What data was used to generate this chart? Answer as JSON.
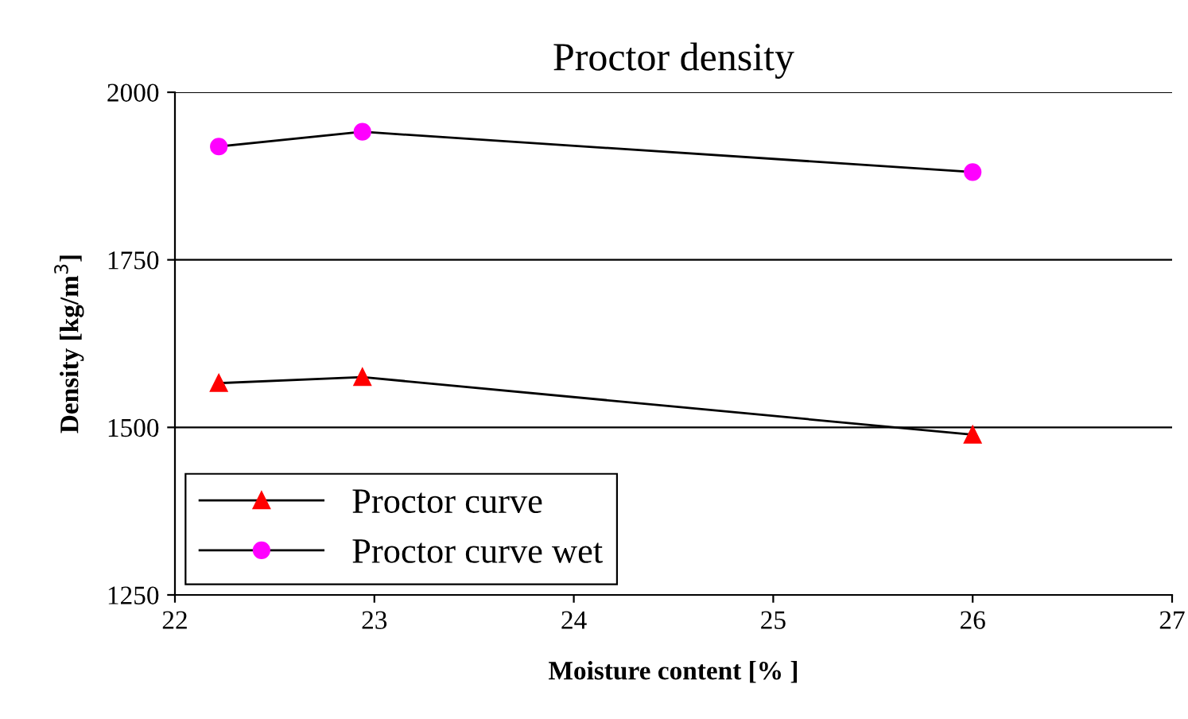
{
  "chart_data": {
    "type": "line",
    "title": "Proctor density",
    "xlabel": "Moisture content [% ]",
    "ylabel": "Density [kg/m$^{3}$]",
    "xlim": [
      22,
      27
    ],
    "xticks": [
      22,
      23,
      24,
      25,
      26,
      27
    ],
    "ylim": [
      1250,
      2000
    ],
    "yticks": [
      1250,
      1500,
      1750,
      2000
    ],
    "grid": "y",
    "legend": "bottom left",
    "series": [
      {
        "name": "Proctor curve",
        "color": "#ff0000",
        "marker": "triangle",
        "x": [
          22.22,
          22.94,
          26.0
        ],
        "values": [
          1566,
          1575,
          1489
        ]
      },
      {
        "name": "Proctor curve wet",
        "color": "#ff00ff",
        "marker": "circle",
        "x": [
          22.22,
          22.94,
          26.0
        ],
        "values": [
          1919,
          1941,
          1881
        ]
      }
    ]
  }
}
